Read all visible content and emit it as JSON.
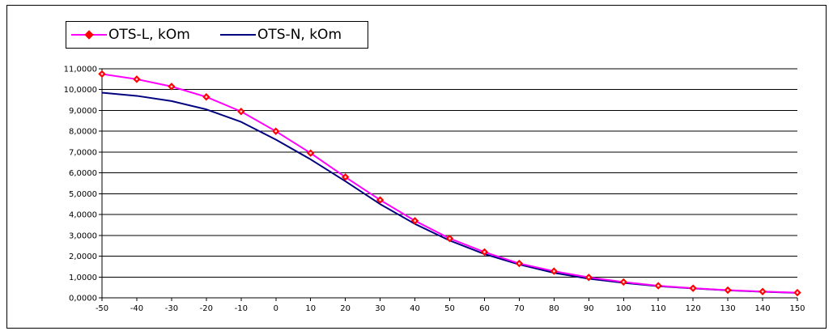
{
  "chart_data": {
    "type": "line",
    "title": "",
    "xlabel": "",
    "ylabel": "",
    "x": [
      -50,
      -40,
      -30,
      -20,
      -10,
      0,
      10,
      20,
      30,
      40,
      50,
      60,
      70,
      80,
      90,
      100,
      110,
      120,
      130,
      140,
      150
    ],
    "x_tick_labels": [
      "-50",
      "-40",
      "-30",
      "-20",
      "-10",
      "0",
      "10",
      "20",
      "30",
      "40",
      "50",
      "60",
      "70",
      "80",
      "90",
      "100",
      "110",
      "120",
      "130",
      "140",
      "150"
    ],
    "ylim": [
      0,
      11
    ],
    "y_ticks": [
      0,
      1,
      2,
      3,
      4,
      5,
      6,
      7,
      8,
      9,
      10,
      11
    ],
    "y_tick_labels": [
      "0,0000",
      "1,0000",
      "2,0000",
      "3,0000",
      "4,0000",
      "5,0000",
      "6,0000",
      "7,0000",
      "8,0000",
      "9,0000",
      "10,0000",
      "11,0000"
    ],
    "grid": "horizontal",
    "legend_position": "top-left",
    "series": [
      {
        "name": "OTS-L, kOm",
        "color": "#ff00ff",
        "marker": "diamond",
        "marker_color": "#ff0000",
        "values": [
          10.75,
          10.5,
          10.15,
          9.65,
          8.95,
          8.0,
          6.95,
          5.8,
          4.7,
          3.7,
          2.85,
          2.2,
          1.65,
          1.28,
          0.98,
          0.76,
          0.58,
          0.46,
          0.37,
          0.3,
          0.25
        ]
      },
      {
        "name": "OTS-N, kOm",
        "color": "#000080",
        "marker": "none",
        "values": [
          9.85,
          9.7,
          9.45,
          9.05,
          8.45,
          7.6,
          6.65,
          5.6,
          4.5,
          3.55,
          2.75,
          2.1,
          1.6,
          1.2,
          0.92,
          0.72,
          0.56,
          0.45,
          0.36,
          0.29,
          0.24
        ]
      }
    ]
  }
}
